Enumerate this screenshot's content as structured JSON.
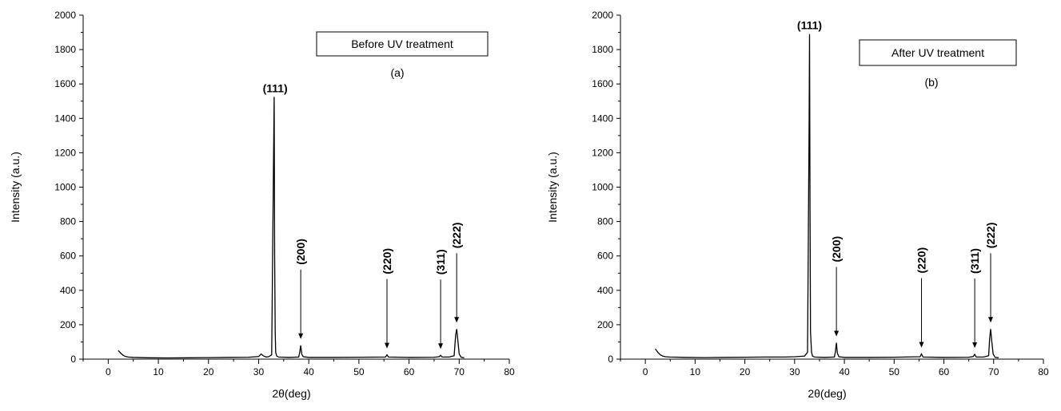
{
  "chart_data": [
    {
      "type": "line",
      "subtitle": "(a)",
      "legend_box": "Before UV treatment",
      "xlabel": "2θ(deg)",
      "ylabel": "Intensity (a.u.)",
      "xlim": [
        -5,
        80
      ],
      "ylim": [
        0,
        2000
      ],
      "xticks": [
        0,
        10,
        20,
        30,
        40,
        50,
        60,
        70,
        80
      ],
      "yticks": [
        0,
        200,
        400,
        600,
        800,
        1000,
        1200,
        1400,
        1600,
        1800,
        2000
      ],
      "grid": false,
      "series": [
        {
          "x": [
            2.0,
            2.5,
            3.0,
            3.5,
            4.0,
            5.0,
            8.0,
            12.0,
            16.0,
            20.0,
            24.0,
            28.0,
            30.0,
            30.5,
            31.0,
            31.5,
            32.0,
            32.6,
            32.9,
            33.1,
            33.2,
            33.3,
            33.4,
            33.6,
            34.0,
            36.0,
            38.0,
            38.2,
            38.4,
            38.6,
            38.9,
            40.0,
            45.0,
            50.0,
            55.3,
            55.6,
            55.9,
            60.0,
            65.0,
            66.0,
            66.3,
            66.6,
            68.0,
            69.0,
            69.3,
            69.5,
            69.7,
            70.0,
            70.4,
            71.0
          ],
          "y": [
            50,
            35,
            22,
            15,
            12,
            10,
            8,
            7,
            8,
            9,
            10,
            11,
            15,
            30,
            18,
            12,
            14,
            25,
            960,
            1525,
            600,
            160,
            40,
            18,
            12,
            10,
            12,
            40,
            80,
            30,
            14,
            10,
            10,
            11,
            12,
            25,
            12,
            10,
            11,
            14,
            22,
            12,
            12,
            20,
            140,
            175,
            120,
            30,
            10,
            8
          ]
        }
      ],
      "annotations": [
        {
          "text": "(111)",
          "x": 33.3,
          "y": 1525
        },
        {
          "text": "(200)",
          "x": 38.4,
          "y": 80
        },
        {
          "text": "(220)",
          "x": 55.6,
          "y": 25
        },
        {
          "text": "(311)",
          "x": 66.3,
          "y": 22
        },
        {
          "text": "(222)",
          "x": 69.5,
          "y": 175
        }
      ]
    },
    {
      "type": "line",
      "subtitle": "(b)",
      "legend_box": "After UV treatment",
      "xlabel": "2θ(deg)",
      "ylabel": "Intensity (a.u.)",
      "xlim": [
        -5,
        80
      ],
      "ylim": [
        0,
        2000
      ],
      "xticks": [
        0,
        10,
        20,
        30,
        40,
        50,
        60,
        70,
        80
      ],
      "yticks": [
        0,
        200,
        400,
        600,
        800,
        1000,
        1200,
        1400,
        1600,
        1800,
        2000
      ],
      "grid": false,
      "series": [
        {
          "x": [
            2.0,
            2.5,
            3.0,
            3.5,
            4.0,
            5.0,
            8.0,
            12.0,
            16.0,
            20.0,
            24.0,
            28.0,
            30.0,
            31.0,
            32.0,
            32.6,
            32.9,
            33.0,
            33.1,
            33.2,
            33.4,
            33.6,
            34.0,
            36.0,
            38.0,
            38.2,
            38.4,
            38.6,
            38.9,
            40.0,
            45.0,
            50.0,
            55.2,
            55.5,
            55.8,
            60.0,
            65.0,
            65.9,
            66.2,
            66.5,
            68.0,
            69.0,
            69.2,
            69.4,
            69.6,
            69.9,
            70.3,
            71.0
          ],
          "y": [
            60,
            40,
            25,
            18,
            14,
            12,
            10,
            9,
            10,
            11,
            12,
            12,
            14,
            16,
            18,
            40,
            1320,
            1890,
            900,
            160,
            40,
            18,
            12,
            10,
            12,
            45,
            95,
            35,
            14,
            10,
            10,
            11,
            14,
            30,
            12,
            10,
            11,
            15,
            28,
            12,
            12,
            20,
            120,
            175,
            110,
            30,
            10,
            8
          ]
        }
      ],
      "annotations": [
        {
          "text": "(111)",
          "x": 33.0,
          "y": 1890
        },
        {
          "text": "(200)",
          "x": 38.4,
          "y": 95
        },
        {
          "text": "(220)",
          "x": 55.5,
          "y": 30
        },
        {
          "text": "(311)",
          "x": 66.2,
          "y": 28
        },
        {
          "text": "(222)",
          "x": 69.4,
          "y": 175
        }
      ]
    }
  ]
}
